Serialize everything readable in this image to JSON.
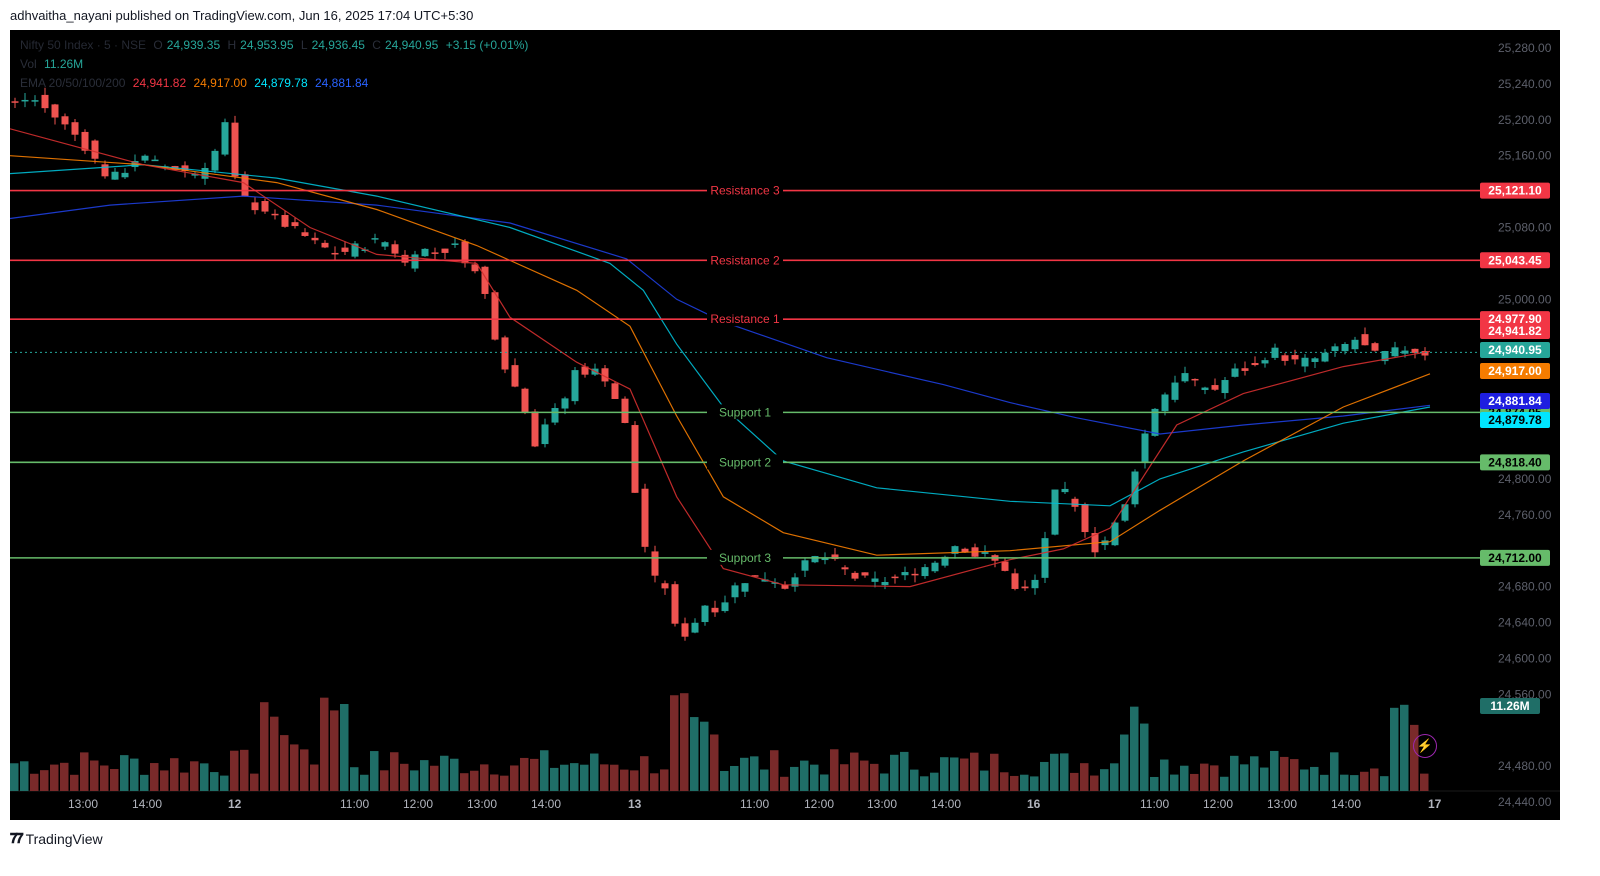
{
  "header": {
    "published_text": "adhvaitha_nayani published on TradingView.com, Jun 16, 2025 17:04 UTC+5:30"
  },
  "legend": {
    "symbol": "Nifty 50 Index · 5 · NSE",
    "o_label": "O",
    "o": "24,939.35",
    "h_label": "H",
    "h": "24,953.95",
    "l_label": "L",
    "l": "24,936.45",
    "c_label": "C",
    "c": "24,940.95",
    "change": "+3.15 (+0.01%)",
    "vol_label": "Vol",
    "vol": "11.26M",
    "ema_label": "EMA 20/50/100/200",
    "ema20": "24,941.82",
    "ema50": "24,917.00",
    "ema100": "24,879.78",
    "ema200": "24,881.84"
  },
  "colors": {
    "up": "#26a69a",
    "down": "#ef5350",
    "up_vol": "#1f6e67",
    "down_vol": "#7a2a2a",
    "resistance": "#f23645",
    "support": "#66bb6a",
    "ema20": "#d32f2f",
    "ema50": "#f57c00",
    "ema100": "#00bcd4",
    "ema200": "#1e3fe0"
  },
  "chart_data": {
    "type": "candlestick",
    "title": "Nifty 50 Index · 5 · NSE",
    "ylim": [
      24420,
      25300
    ],
    "y_ticks": [
      "25,280.00",
      "25,240.00",
      "25,200.00",
      "25,160.00",
      "25,080.00",
      "25,000.00",
      "24,800.00",
      "24,760.00",
      "24,680.00",
      "24,640.00",
      "24,600.00",
      "24,560.00",
      "24,480.00",
      "24,440.00"
    ],
    "x_ticks": [
      "13:00",
      "14:00",
      "12",
      "11:00",
      "12:00",
      "13:00",
      "14:00",
      "13",
      "11:00",
      "12:00",
      "13:00",
      "14:00",
      "16",
      "11:00",
      "12:00",
      "13:00",
      "14:00",
      "17"
    ],
    "levels": [
      {
        "label": "Resistance 3",
        "value": 25121.1,
        "price": "25,121.10",
        "kind": "resistance"
      },
      {
        "label": "Resistance 2",
        "value": 25043.45,
        "price": "25,043.45",
        "kind": "resistance"
      },
      {
        "label": "Resistance 1",
        "value": 24977.9,
        "price": "24,977.90",
        "kind": "resistance"
      },
      {
        "label": "Support 1",
        "value": 24874.05,
        "price": "24,874.05",
        "kind": "support"
      },
      {
        "label": "Support 2",
        "value": 24818.4,
        "price": "24,818.40",
        "kind": "support"
      },
      {
        "label": "Support 3",
        "value": 24712.0,
        "price": "24,712.00",
        "kind": "support"
      }
    ],
    "price_labels": [
      {
        "value": 24941.82,
        "text": "24,941.82",
        "color": "#f23645"
      },
      {
        "value": 24940.95,
        "text": "24,940.95",
        "color": "#26a69a"
      },
      {
        "value": 24917.0,
        "text": "24,917.00",
        "color": "#f57c00"
      },
      {
        "value": 24881.84,
        "text": "24,881.84",
        "color": "#1e1ee0"
      },
      {
        "value": 24879.78,
        "text": "24,879.78",
        "color": "#00e5ff"
      }
    ],
    "volume_label": "11.26M",
    "price_path": [
      [
        0,
        25215
      ],
      [
        8,
        25225
      ],
      [
        16,
        25200
      ],
      [
        22,
        25180
      ],
      [
        26,
        25160
      ],
      [
        31,
        25135
      ],
      [
        35,
        25140
      ],
      [
        40,
        25160
      ],
      [
        46,
        25150
      ],
      [
        52,
        25145
      ],
      [
        58,
        25140
      ],
      [
        63,
        25165
      ],
      [
        66,
        25195
      ],
      [
        68,
        25140
      ],
      [
        73,
        25105
      ],
      [
        78,
        25100
      ],
      [
        83,
        25085
      ],
      [
        88,
        25075
      ],
      [
        94,
        25060
      ],
      [
        100,
        25050
      ],
      [
        106,
        25060
      ],
      [
        110,
        25060
      ],
      [
        112,
        25070
      ],
      [
        116,
        25058
      ],
      [
        120,
        25040
      ],
      [
        124,
        25060
      ],
      [
        128,
        25050
      ],
      [
        136,
        25060
      ],
      [
        138,
        25045
      ],
      [
        143,
        25020
      ],
      [
        147,
        24960
      ],
      [
        151,
        24915
      ],
      [
        155,
        24890
      ],
      [
        159,
        24840
      ],
      [
        163,
        24870
      ],
      [
        167,
        24880
      ],
      [
        171,
        24920
      ],
      [
        175,
        24920
      ],
      [
        179,
        24920
      ],
      [
        183,
        24890
      ],
      [
        186,
        24860
      ],
      [
        190,
        24760
      ],
      [
        194,
        24690
      ],
      [
        198,
        24680
      ],
      [
        202,
        24620
      ],
      [
        206,
        24635
      ],
      [
        210,
        24660
      ],
      [
        214,
        24655
      ],
      [
        220,
        24685
      ],
      [
        224,
        24690
      ],
      [
        230,
        24690
      ],
      [
        234,
        24680
      ],
      [
        238,
        24700
      ],
      [
        243,
        24712
      ],
      [
        247,
        24712
      ],
      [
        251,
        24700
      ],
      [
        255,
        24690
      ],
      [
        262,
        24685
      ],
      [
        268,
        24690
      ],
      [
        275,
        24700
      ],
      [
        280,
        24710
      ],
      [
        286,
        24730
      ],
      [
        290,
        24715
      ],
      [
        294,
        24715
      ],
      [
        300,
        24700
      ],
      [
        304,
        24668
      ],
      [
        307,
        24680
      ],
      [
        310,
        24690
      ],
      [
        314,
        24780
      ],
      [
        317,
        24790
      ],
      [
        322,
        24760
      ],
      [
        327,
        24722
      ],
      [
        331,
        24735
      ],
      [
        336,
        24770
      ],
      [
        341,
        24840
      ],
      [
        345,
        24880
      ],
      [
        349,
        24900
      ],
      [
        353,
        24920
      ],
      [
        357,
        24905
      ],
      [
        363,
        24900
      ],
      [
        369,
        24920
      ],
      [
        375,
        24925
      ],
      [
        380,
        24945
      ],
      [
        386,
        24930
      ],
      [
        392,
        24932
      ],
      [
        400,
        24945
      ],
      [
        405,
        24955
      ],
      [
        411,
        24938
      ],
      [
        415,
        24940
      ],
      [
        420,
        24945
      ],
      [
        426,
        24940
      ]
    ],
    "ema20_path": [
      [
        0,
        25190
      ],
      [
        40,
        25150
      ],
      [
        70,
        25130
      ],
      [
        90,
        25080
      ],
      [
        110,
        25050
      ],
      [
        140,
        25040
      ],
      [
        150,
        24980
      ],
      [
        170,
        24930
      ],
      [
        186,
        24900
      ],
      [
        200,
        24780
      ],
      [
        214,
        24700
      ],
      [
        232,
        24682
      ],
      [
        270,
        24680
      ],
      [
        300,
        24710
      ],
      [
        316,
        24722
      ],
      [
        330,
        24745
      ],
      [
        350,
        24860
      ],
      [
        370,
        24895
      ],
      [
        400,
        24925
      ],
      [
        426,
        24942
      ]
    ],
    "ema50_path": [
      [
        0,
        25160
      ],
      [
        40,
        25150
      ],
      [
        80,
        25130
      ],
      [
        110,
        25100
      ],
      [
        140,
        25060
      ],
      [
        170,
        25010
      ],
      [
        186,
        24970
      ],
      [
        200,
        24870
      ],
      [
        214,
        24780
      ],
      [
        232,
        24740
      ],
      [
        260,
        24715
      ],
      [
        300,
        24720
      ],
      [
        330,
        24730
      ],
      [
        345,
        24765
      ],
      [
        370,
        24820
      ],
      [
        400,
        24880
      ],
      [
        426,
        24917
      ]
    ],
    "ema100_path": [
      [
        0,
        25140
      ],
      [
        40,
        25150
      ],
      [
        80,
        25135
      ],
      [
        110,
        25115
      ],
      [
        150,
        25080
      ],
      [
        180,
        25040
      ],
      [
        190,
        25010
      ],
      [
        200,
        24950
      ],
      [
        214,
        24880
      ],
      [
        232,
        24820
      ],
      [
        260,
        24790
      ],
      [
        300,
        24775
      ],
      [
        330,
        24770
      ],
      [
        345,
        24800
      ],
      [
        370,
        24830
      ],
      [
        400,
        24862
      ],
      [
        426,
        24880
      ]
    ],
    "ema200_path": [
      [
        0,
        25090
      ],
      [
        30,
        25105
      ],
      [
        70,
        25115
      ],
      [
        110,
        25105
      ],
      [
        150,
        25085
      ],
      [
        185,
        25045
      ],
      [
        200,
        25000
      ],
      [
        214,
        24975
      ],
      [
        245,
        24935
      ],
      [
        280,
        24905
      ],
      [
        300,
        24885
      ],
      [
        320,
        24868
      ],
      [
        345,
        24850
      ],
      [
        370,
        24860
      ],
      [
        400,
        24870
      ],
      [
        426,
        24882
      ]
    ]
  }
}
